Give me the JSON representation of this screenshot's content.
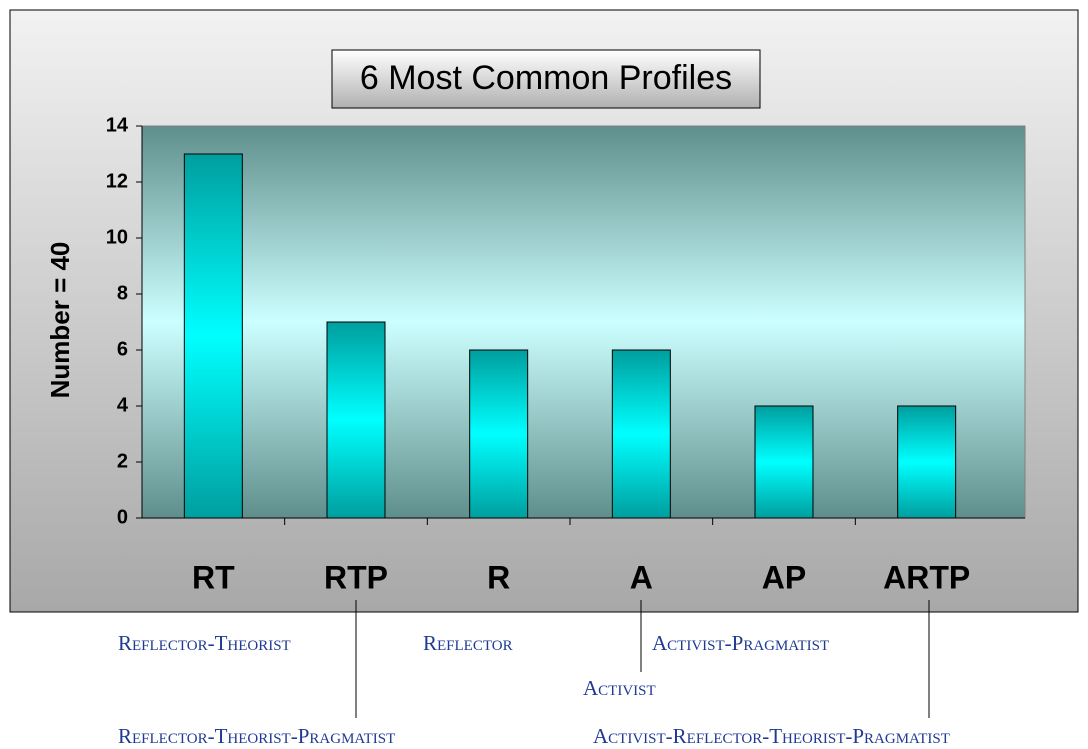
{
  "chart_data": {
    "type": "bar",
    "title": "6 Most Common Profiles",
    "y_label": "Number = 40",
    "categories": [
      "RT",
      "RTP",
      "R",
      "A",
      "AP",
      "ARTP"
    ],
    "values": [
      13,
      7,
      6,
      6,
      4,
      4
    ],
    "color": "#00e5e5",
    "ylim": [
      0,
      14
    ],
    "yticks": [
      0,
      2,
      4,
      6,
      8,
      10,
      12,
      14
    ],
    "grid": false
  },
  "annotations": [
    "Reflector-Theorist",
    "Reflector",
    "Activist-Pragmatist",
    "Activist",
    "Reflector-Theorist-Pragmatist",
    "Activist-Reflector-Theorist-Pragmatist"
  ]
}
